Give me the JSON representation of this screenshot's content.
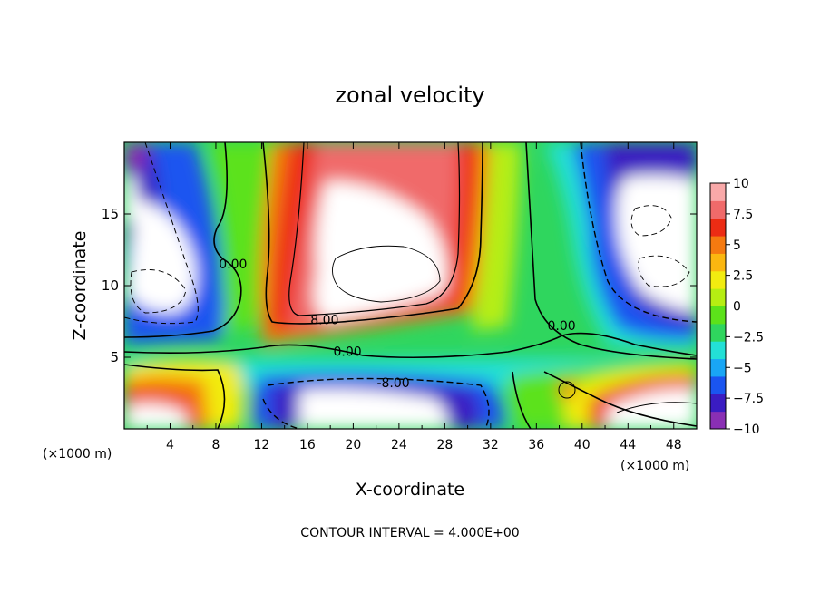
{
  "chart_data": {
    "type": "heatmap",
    "title": "zonal velocity",
    "xlabel": "X-coordinate",
    "ylabel": "Z-coordinate",
    "x_unit_label": "(×1000 m)",
    "x_unit_label_right": "(×1000 m)",
    "footer": "CONTOUR INTERVAL = 4.000E+00",
    "xlim": [
      0,
      50
    ],
    "ylim": [
      0,
      20
    ],
    "x_ticks": [
      4,
      8,
      12,
      16,
      20,
      24,
      28,
      32,
      36,
      40,
      44,
      48
    ],
    "x_tick_labels": [
      "4",
      "8",
      "12",
      "16",
      "20",
      "24",
      "28",
      "32",
      "36",
      "40",
      "44",
      "48"
    ],
    "y_ticks": [
      5,
      10,
      15
    ],
    "y_tick_labels": [
      "5",
      "10",
      "15"
    ],
    "colorbar": {
      "vmin": -10,
      "vmax": 10,
      "ticks": [
        10,
        7.5,
        5,
        2.5,
        0,
        -2.5,
        -5,
        -7.5,
        -10
      ],
      "tick_labels": [
        "10",
        "7.5",
        "5",
        "2.5",
        "0",
        "−2.5",
        "−5",
        "−7.5",
        "−10"
      ],
      "colors": [
        "#8a2fb4",
        "#3a1cc2",
        "#1a55f0",
        "#19a6f5",
        "#23e0d6",
        "#2fd65e",
        "#5ce21a",
        "#b6ee12",
        "#f2ec10",
        "#fbb710",
        "#f57a10",
        "#ec2c14",
        "#f06a6a",
        "#f9a9a9"
      ]
    },
    "contour_interval": 4,
    "contour_labels": [
      {
        "text": "0.00",
        "x": 9.5,
        "z": 11.2
      },
      {
        "text": "8.00",
        "x": 17.5,
        "z": 7.3
      },
      {
        "text": "0.00",
        "x": 19.5,
        "z": 5.1
      },
      {
        "text": "-8.00",
        "x": 23.5,
        "z": 2.9
      },
      {
        "text": "0.00",
        "x": 38.2,
        "z": 6.9
      }
    ],
    "grid": false
  }
}
